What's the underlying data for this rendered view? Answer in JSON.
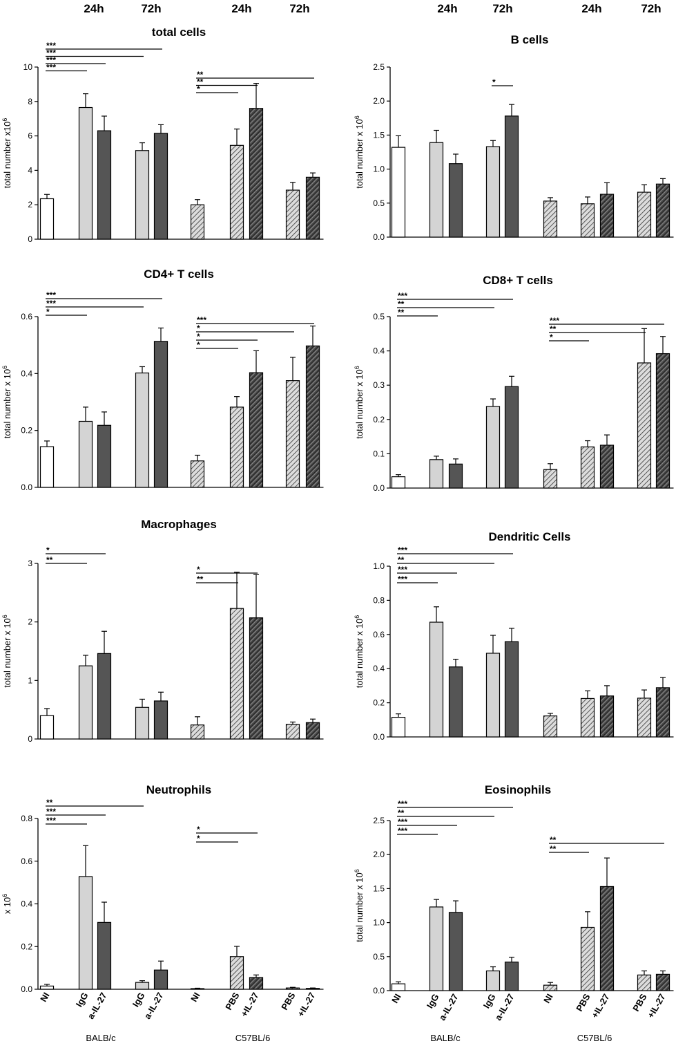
{
  "time_labels": [
    "24h",
    "72h",
    "24h",
    "72h"
  ],
  "category_labels": [
    "NI",
    "IgG",
    "a-IL-27",
    "IgG",
    "a-IL-27",
    "NI",
    "PBS",
    "+IL-27",
    "PBS",
    "+IL-27"
  ],
  "strain_labels": [
    "BALB/c",
    "C57BL/6"
  ],
  "colors": {
    "white": "#ffffff",
    "light_gray": "#d4d4d4",
    "dark_gray": "#555555",
    "hatch_light": "#d4d4d4",
    "hatch_dark": "#555555",
    "line": "#000000"
  },
  "chart_data": [
    {
      "type": "bar",
      "title": "total cells",
      "ylabel": "total number x10",
      "ylabel_sup": "6",
      "ylim": [
        0,
        10
      ],
      "yticks": [
        0,
        2,
        4,
        6,
        8,
        10
      ],
      "tick_labels": [
        "0",
        "2",
        "4",
        "6",
        "8",
        "10"
      ],
      "values": [
        2.35,
        7.65,
        6.3,
        5.15,
        6.15,
        2.0,
        5.45,
        7.6,
        2.85,
        3.6
      ],
      "errors": [
        0.25,
        0.8,
        0.85,
        0.45,
        0.5,
        0.3,
        0.95,
        1.45,
        0.45,
        0.25
      ],
      "sig": [
        {
          "from": 0,
          "to": 4,
          "label": "***"
        },
        {
          "from": 0,
          "to": 3,
          "label": "***"
        },
        {
          "from": 0,
          "to": 2,
          "label": "***"
        },
        {
          "from": 0,
          "to": 1,
          "label": "***"
        },
        {
          "from": 5,
          "to": 9,
          "label": "**"
        },
        {
          "from": 5,
          "to": 7,
          "label": "**"
        },
        {
          "from": 5,
          "to": 6,
          "label": "*"
        }
      ]
    },
    {
      "type": "bar",
      "title": "B cells",
      "ylabel": "total number x 10",
      "ylabel_sup": "6",
      "ylim": [
        0,
        2.5
      ],
      "yticks": [
        0,
        0.5,
        1,
        1.5,
        2,
        2.5
      ],
      "tick_labels": [
        "0.0",
        "0.5",
        "1.0",
        "1.5",
        "2.0",
        "2.5"
      ],
      "values": [
        1.32,
        1.39,
        1.08,
        1.33,
        1.78,
        0.53,
        0.49,
        0.63,
        0.66,
        0.78
      ],
      "errors": [
        0.17,
        0.18,
        0.14,
        0.09,
        0.17,
        0.05,
        0.1,
        0.17,
        0.11,
        0.08
      ],
      "sig": [
        {
          "from": 3,
          "to": 4,
          "label": "*"
        }
      ]
    },
    {
      "type": "bar",
      "title": "CD4+ T cells",
      "ylabel": "total number x 10",
      "ylabel_sup": "6",
      "ylim": [
        0,
        0.6
      ],
      "yticks": [
        0,
        0.2,
        0.4,
        0.6
      ],
      "tick_labels": [
        "0.0",
        "0.2",
        "0.4",
        "0.6"
      ],
      "values": [
        0.143,
        0.232,
        0.218,
        0.402,
        0.513,
        0.093,
        0.282,
        0.403,
        0.375,
        0.497
      ],
      "errors": [
        0.02,
        0.05,
        0.047,
        0.022,
        0.047,
        0.02,
        0.037,
        0.077,
        0.082,
        0.07
      ],
      "sig": [
        {
          "from": 0,
          "to": 4,
          "label": "***"
        },
        {
          "from": 0,
          "to": 3,
          "label": "***"
        },
        {
          "from": 0,
          "to": 1,
          "label": "*"
        },
        {
          "from": 5,
          "to": 9,
          "label": "***"
        },
        {
          "from": 5,
          "to": 8,
          "label": "*"
        },
        {
          "from": 5,
          "to": 7,
          "label": "*"
        },
        {
          "from": 5,
          "to": 6,
          "label": "*"
        }
      ]
    },
    {
      "type": "bar",
      "title": "CD8+ T cells",
      "ylabel": "total number x 10",
      "ylabel_sup": "6",
      "ylim": [
        0,
        0.5
      ],
      "yticks": [
        0,
        0.1,
        0.2,
        0.3,
        0.4,
        0.5
      ],
      "tick_labels": [
        "0.0",
        "0.1",
        "0.2",
        "0.3",
        "0.4",
        "0.5"
      ],
      "values": [
        0.033,
        0.083,
        0.07,
        0.238,
        0.296,
        0.054,
        0.12,
        0.125,
        0.365,
        0.392
      ],
      "errors": [
        0.006,
        0.01,
        0.015,
        0.022,
        0.03,
        0.017,
        0.018,
        0.03,
        0.1,
        0.05
      ],
      "sig": [
        {
          "from": 0,
          "to": 4,
          "label": "***"
        },
        {
          "from": 0,
          "to": 3,
          "label": "**"
        },
        {
          "from": 0,
          "to": 1,
          "label": "**"
        },
        {
          "from": 5,
          "to": 9,
          "label": "***"
        },
        {
          "from": 5,
          "to": 8,
          "label": "**"
        },
        {
          "from": 5,
          "to": 6,
          "label": "*"
        }
      ]
    },
    {
      "type": "bar",
      "title": "Macrophages",
      "ylabel": "total number x 10",
      "ylabel_sup": "6",
      "ylim": [
        0,
        3
      ],
      "yticks": [
        0,
        1,
        2,
        3
      ],
      "tick_labels": [
        "0",
        "1",
        "2",
        "3"
      ],
      "values": [
        0.4,
        1.25,
        1.46,
        0.54,
        0.65,
        0.24,
        2.23,
        2.07,
        0.25,
        0.28
      ],
      "errors": [
        0.12,
        0.18,
        0.38,
        0.14,
        0.15,
        0.14,
        0.62,
        0.74,
        0.04,
        0.06
      ],
      "sig": [
        {
          "from": 0,
          "to": 2,
          "label": "*"
        },
        {
          "from": 0,
          "to": 1,
          "label": "**"
        },
        {
          "from": 5,
          "to": 7,
          "label": "*"
        },
        {
          "from": 5,
          "to": 6,
          "label": "**"
        }
      ]
    },
    {
      "type": "bar",
      "title": "Dendritic Cells",
      "ylabel": "total number x 10",
      "ylabel_sup": "6",
      "ylim": [
        0,
        1
      ],
      "yticks": [
        0,
        0.2,
        0.4,
        0.6,
        0.8,
        1
      ],
      "tick_labels": [
        "0.0",
        "0.2",
        "0.4",
        "0.6",
        "0.8",
        "1.0"
      ],
      "values": [
        0.115,
        0.672,
        0.41,
        0.49,
        0.558,
        0.123,
        0.225,
        0.24,
        0.227,
        0.288
      ],
      "errors": [
        0.02,
        0.09,
        0.045,
        0.105,
        0.078,
        0.015,
        0.045,
        0.06,
        0.048,
        0.06
      ],
      "sig": [
        {
          "from": 0,
          "to": 4,
          "label": "***"
        },
        {
          "from": 0,
          "to": 3,
          "label": "**"
        },
        {
          "from": 0,
          "to": 2,
          "label": "***"
        },
        {
          "from": 0,
          "to": 1,
          "label": "***"
        }
      ]
    },
    {
      "type": "bar",
      "title": "Neutrophils",
      "ylabel": "x 10",
      "ylabel_sup": "6",
      "ylim": [
        0,
        0.8
      ],
      "yticks": [
        0,
        0.2,
        0.4,
        0.6,
        0.8
      ],
      "tick_labels": [
        "0.0",
        "0.2",
        "0.4",
        "0.6",
        "0.8"
      ],
      "values": [
        0.015,
        0.528,
        0.313,
        0.032,
        0.09,
        0.003,
        0.153,
        0.055,
        0.006,
        0.004
      ],
      "errors": [
        0.008,
        0.145,
        0.095,
        0.008,
        0.042,
        0.002,
        0.048,
        0.012,
        0.003,
        0.002
      ],
      "sig": [
        {
          "from": 0,
          "to": 3,
          "label": "**"
        },
        {
          "from": 0,
          "to": 2,
          "label": "***"
        },
        {
          "from": 0,
          "to": 1,
          "label": "***"
        },
        {
          "from": 5,
          "to": 7,
          "label": "*"
        },
        {
          "from": 5,
          "to": 6,
          "label": "*"
        }
      ]
    },
    {
      "type": "bar",
      "title": "Eosinophils",
      "ylabel": "total number x 10",
      "ylabel_sup": "6",
      "ylim": [
        0,
        2.5
      ],
      "yticks": [
        0,
        0.5,
        1,
        1.5,
        2,
        2.5
      ],
      "tick_labels": [
        "0.0",
        "0.5",
        "1.0",
        "1.5",
        "2.0",
        "2.5"
      ],
      "values": [
        0.1,
        1.23,
        1.15,
        0.29,
        0.42,
        0.08,
        0.93,
        1.53,
        0.23,
        0.24
      ],
      "errors": [
        0.03,
        0.11,
        0.17,
        0.06,
        0.07,
        0.04,
        0.23,
        0.42,
        0.06,
        0.05
      ],
      "sig": [
        {
          "from": 0,
          "to": 4,
          "label": "***"
        },
        {
          "from": 0,
          "to": 3,
          "label": "**"
        },
        {
          "from": 0,
          "to": 2,
          "label": "***"
        },
        {
          "from": 0,
          "to": 1,
          "label": "***"
        },
        {
          "from": 5,
          "to": 9,
          "label": "**"
        },
        {
          "from": 5,
          "to": 6,
          "label": "**"
        }
      ]
    }
  ]
}
